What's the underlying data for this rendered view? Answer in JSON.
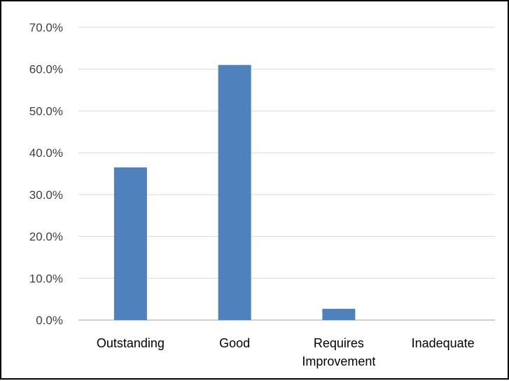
{
  "chart_data": {
    "type": "bar",
    "title": "",
    "xlabel": "",
    "ylabel": "",
    "categories": [
      [
        "Outstanding"
      ],
      [
        "Good"
      ],
      [
        "Requires",
        "Improvement"
      ],
      [
        "Inadequate"
      ]
    ],
    "values": [
      36.5,
      61.0,
      2.7,
      0.0
    ],
    "ylim": [
      0,
      70
    ],
    "yticks": [
      0,
      10,
      20,
      30,
      40,
      50,
      60,
      70
    ],
    "ytick_labels": [
      "0.0%",
      "10.0%",
      "20.0%",
      "30.0%",
      "40.0%",
      "50.0%",
      "60.0%",
      "70.0%"
    ],
    "grid": true,
    "legend": "none",
    "colors": {
      "bar": "#4f81bd",
      "grid": "#d9d9d9",
      "axis": "#bfbfbf"
    }
  }
}
